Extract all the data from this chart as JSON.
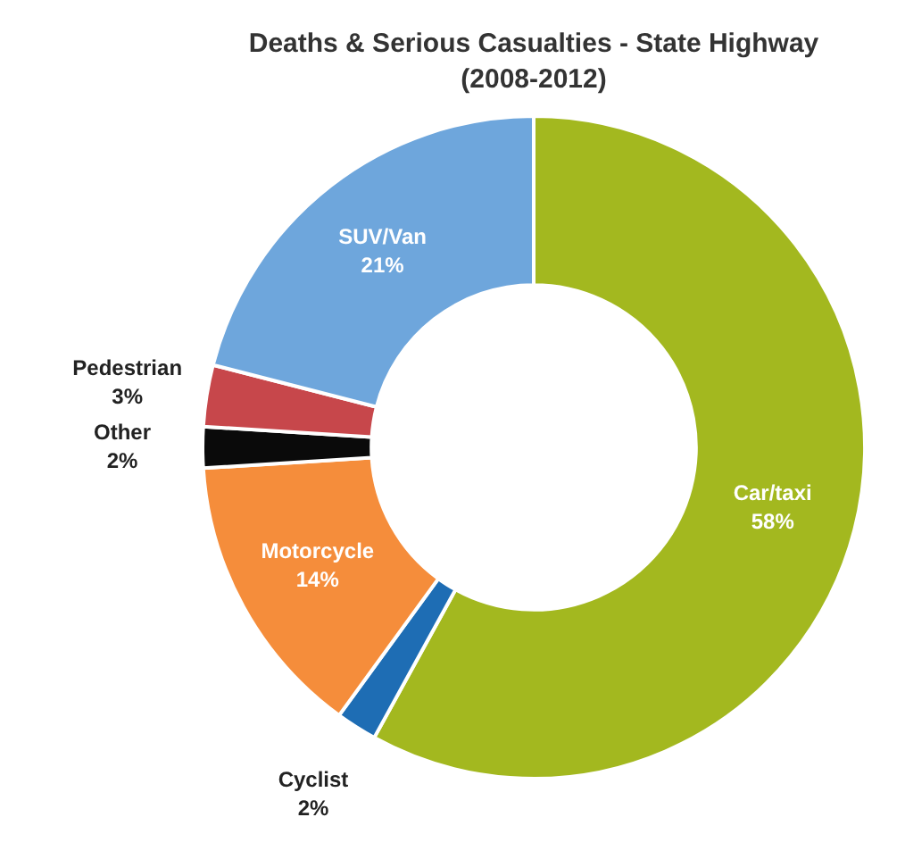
{
  "chart_data": {
    "type": "donut",
    "title": "Deaths & Serious Casualties - State Highway",
    "subtitle": "(2008-2012)",
    "categories": [
      "Car/taxi",
      "Cyclist",
      "Motorcycle",
      "Other",
      "Pedestrian",
      "SUV/Van"
    ],
    "values": [
      58,
      2,
      14,
      2,
      3,
      21
    ],
    "value_labels": [
      "58%",
      "2%",
      "14%",
      "2%",
      "3%",
      "21%"
    ],
    "colors": [
      "#a3b81f",
      "#1e6db4",
      "#f58d3b",
      "#0a0a0a",
      "#c7474b",
      "#6ea6dc"
    ]
  }
}
